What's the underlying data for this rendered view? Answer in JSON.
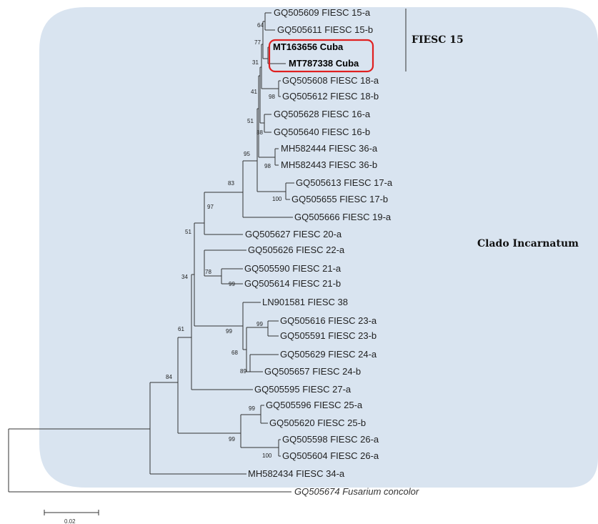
{
  "highlight_color": "#d9e4f0",
  "box_color": "#e02020",
  "clade_labels": {
    "fiesc15": "FIESC 15",
    "incarnatum": "Clado Incarnatum"
  },
  "scale_bar": "0.02",
  "leaves": [
    {
      "id": "l1",
      "label": "GQ505609 FIESC 15-a",
      "style": "normal"
    },
    {
      "id": "l2",
      "label": "GQ505611 FIESC 15-b",
      "style": "normal"
    },
    {
      "id": "l3",
      "label": "MT163656 Cuba",
      "style": "bold"
    },
    {
      "id": "l4",
      "label": "MT787338 Cuba",
      "style": "bold"
    },
    {
      "id": "l5",
      "label": "GQ505608 FIESC 18-a",
      "style": "normal"
    },
    {
      "id": "l6",
      "label": "GQ505612 FIESC 18-b",
      "style": "normal"
    },
    {
      "id": "l7",
      "label": "GQ505628 FIESC 16-a",
      "style": "normal"
    },
    {
      "id": "l8",
      "label": "GQ505640 FIESC 16-b",
      "style": "normal"
    },
    {
      "id": "l9",
      "label": "MH582444 FIESC 36-a",
      "style": "normal"
    },
    {
      "id": "l10",
      "label": "MH582443 FIESC 36-b",
      "style": "normal"
    },
    {
      "id": "l11",
      "label": "GQ505613 FIESC 17-a",
      "style": "normal"
    },
    {
      "id": "l12",
      "label": "GQ505655 FIESC 17-b",
      "style": "normal"
    },
    {
      "id": "l13",
      "label": "GQ505666 FIESC 19-a",
      "style": "normal"
    },
    {
      "id": "l14",
      "label": "GQ505627 FIESC 20-a",
      "style": "normal"
    },
    {
      "id": "l15",
      "label": "GQ505626 FIESC 22-a",
      "style": "normal"
    },
    {
      "id": "l16",
      "label": "GQ505590 FIESC 21-a",
      "style": "normal"
    },
    {
      "id": "l17",
      "label": "GQ505614 FIESC 21-b",
      "style": "normal"
    },
    {
      "id": "l18",
      "label": "LN901581 FIESC 38",
      "style": "normal"
    },
    {
      "id": "l19",
      "label": "GQ505616 FIESC 23-a",
      "style": "normal"
    },
    {
      "id": "l20",
      "label": "GQ505591 FIESC 23-b",
      "style": "normal"
    },
    {
      "id": "l21",
      "label": "GQ505629 FIESC 24-a",
      "style": "normal"
    },
    {
      "id": "l22",
      "label": "GQ505657 FIESC 24-b",
      "style": "normal"
    },
    {
      "id": "l23",
      "label": "GQ505595 FIESC 27-a",
      "style": "normal"
    },
    {
      "id": "l24",
      "label": "GQ505596 FIESC 25-a",
      "style": "normal"
    },
    {
      "id": "l25",
      "label": "GQ505620 FIESC 25-b",
      "style": "normal"
    },
    {
      "id": "l26",
      "label": "GQ505598 FIESC 26-a",
      "style": "normal"
    },
    {
      "id": "l27",
      "label": "GQ505604 FIESC 26-a",
      "style": "normal"
    },
    {
      "id": "l28",
      "label": "MH582434 FIESC 34-a",
      "style": "normal"
    },
    {
      "id": "l29",
      "label": "GQ505674 Fusarium concolor",
      "style": "outgroup"
    }
  ],
  "bootstrap": [
    {
      "id": "b64",
      "value": "64"
    },
    {
      "id": "b77",
      "value": "77"
    },
    {
      "id": "b31",
      "value": "31"
    },
    {
      "id": "b41",
      "value": "41"
    },
    {
      "id": "b98a",
      "value": "98"
    },
    {
      "id": "b51a",
      "value": "51"
    },
    {
      "id": "b88",
      "value": "88"
    },
    {
      "id": "b95",
      "value": "95"
    },
    {
      "id": "b98b",
      "value": "98"
    },
    {
      "id": "b100a",
      "value": "100"
    },
    {
      "id": "b83",
      "value": "83"
    },
    {
      "id": "b97",
      "value": "97"
    },
    {
      "id": "b51b",
      "value": "51"
    },
    {
      "id": "b78",
      "value": "78"
    },
    {
      "id": "b99a",
      "value": "99"
    },
    {
      "id": "b34",
      "value": "34"
    },
    {
      "id": "b99b",
      "value": "99"
    },
    {
      "id": "b99c",
      "value": "99"
    },
    {
      "id": "b68",
      "value": "68"
    },
    {
      "id": "b89",
      "value": "89"
    },
    {
      "id": "b61",
      "value": "61"
    },
    {
      "id": "b84",
      "value": "84"
    },
    {
      "id": "b99d",
      "value": "99"
    },
    {
      "id": "b99e",
      "value": "99"
    },
    {
      "id": "b100b",
      "value": "100"
    }
  ]
}
